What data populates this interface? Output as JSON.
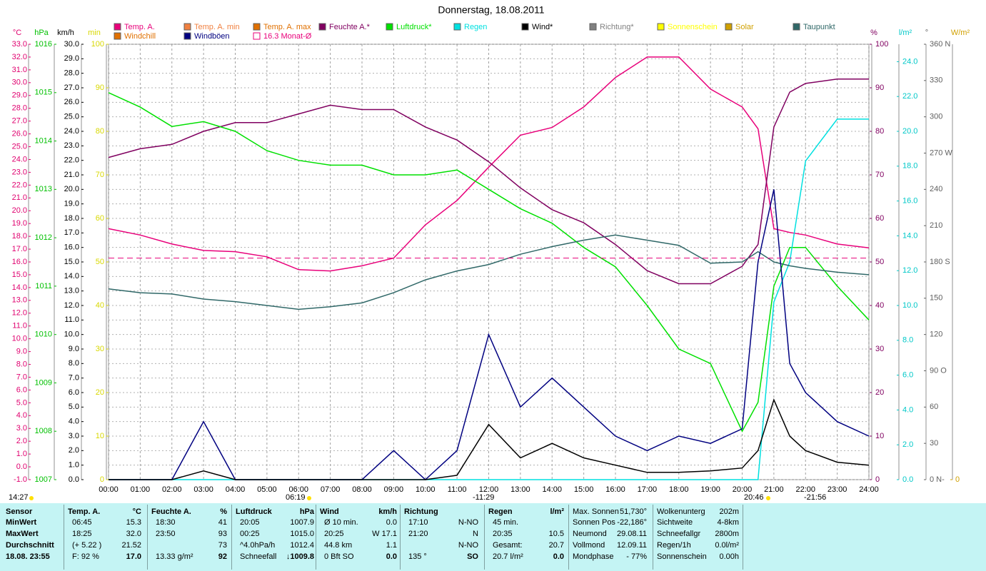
{
  "chart_data": {
    "type": "line",
    "title": "Donnerstag, 18.08.2011",
    "x": [
      0,
      1,
      2,
      3,
      4,
      5,
      6,
      7,
      8,
      9,
      10,
      11,
      12,
      13,
      14,
      15,
      16,
      17,
      18,
      19,
      20,
      20.5,
      21,
      21.5,
      22,
      23,
      24
    ],
    "xlim": [
      0,
      24
    ],
    "xticks": [
      {
        "value": 0,
        "label": "00:00"
      },
      {
        "value": 1,
        "label": "01:00"
      },
      {
        "value": 2,
        "label": "02:00"
      },
      {
        "value": 3,
        "label": "03:00"
      },
      {
        "value": 4,
        "label": "04:00"
      },
      {
        "value": 5,
        "label": "05:00"
      },
      {
        "value": 6,
        "label": "06:00"
      },
      {
        "value": 7,
        "label": "07:00"
      },
      {
        "value": 8,
        "label": "08:00"
      },
      {
        "value": 9,
        "label": "09:00"
      },
      {
        "value": 10,
        "label": "10:00"
      },
      {
        "value": 11,
        "label": "11:00"
      },
      {
        "value": 12,
        "label": "12:00"
      },
      {
        "value": 13,
        "label": "13:00"
      },
      {
        "value": 14,
        "label": "14:00"
      },
      {
        "value": 15,
        "label": "15:00"
      },
      {
        "value": 16,
        "label": "16:00"
      },
      {
        "value": 17,
        "label": "17:00"
      },
      {
        "value": 18,
        "label": "18:00"
      },
      {
        "value": 19,
        "label": "19:00"
      },
      {
        "value": 20,
        "label": "20:00"
      },
      {
        "value": 21,
        "label": "21:00"
      },
      {
        "value": 22,
        "label": "22:00"
      },
      {
        "value": 23,
        "label": "23:00"
      },
      {
        "value": 24,
        "label": "24:00"
      }
    ],
    "grid": true,
    "axes": {
      "celsius": {
        "label": "°C",
        "color": "#e0006f",
        "lim": [
          -1,
          33
        ],
        "ticks": [
          {
            "value": -1,
            "label": "-1.0"
          },
          {
            "value": 0,
            "label": "0.0"
          },
          {
            "value": 1,
            "label": "1.0"
          },
          {
            "value": 2,
            "label": "2.0"
          },
          {
            "value": 3,
            "label": "3.0"
          },
          {
            "value": 4,
            "label": "4.0"
          },
          {
            "value": 5,
            "label": "5.0"
          },
          {
            "value": 6,
            "label": "6.0"
          },
          {
            "value": 7,
            "label": "7.0"
          },
          {
            "value": 8,
            "label": "8.0"
          },
          {
            "value": 9,
            "label": "9.0"
          },
          {
            "value": 10,
            "label": "10.0"
          },
          {
            "value": 11,
            "label": "11.0"
          },
          {
            "value": 12,
            "label": "12.0"
          },
          {
            "value": 13,
            "label": "13.0"
          },
          {
            "value": 14,
            "label": "14.0"
          },
          {
            "value": 15,
            "label": "15.0"
          },
          {
            "value": 16,
            "label": "16.0"
          },
          {
            "value": 17,
            "label": "17.0"
          },
          {
            "value": 18,
            "label": "18.0"
          },
          {
            "value": 19,
            "label": "19.0"
          },
          {
            "value": 20,
            "label": "20.0"
          },
          {
            "value": 21,
            "label": "21.0"
          },
          {
            "value": 22,
            "label": "22.0"
          },
          {
            "value": 23,
            "label": "23.0"
          },
          {
            "value": 24,
            "label": "24.0"
          },
          {
            "value": 25,
            "label": "25.0"
          },
          {
            "value": 26,
            "label": "26.0"
          },
          {
            "value": 27,
            "label": "27.0"
          },
          {
            "value": 28,
            "label": "28.0"
          },
          {
            "value": 29,
            "label": "29.0"
          },
          {
            "value": 30,
            "label": "30.0"
          },
          {
            "value": 31,
            "label": "31.0"
          },
          {
            "value": 32,
            "label": "32.0"
          },
          {
            "value": 33,
            "label": "33.0"
          }
        ]
      },
      "hpa": {
        "label": "hPa",
        "color": "#00c000",
        "lim": [
          1007,
          1016
        ],
        "ticks": [
          1007,
          1008,
          1009,
          1010,
          1011,
          1012,
          1013,
          1014,
          1015,
          1016
        ]
      },
      "kmh": {
        "label": "km/h",
        "color": "#000000",
        "lim": [
          0,
          30
        ],
        "ticks": [
          {
            "value": 0,
            "label": "0.0"
          },
          {
            "value": 1,
            "label": "1.0"
          },
          {
            "value": 2,
            "label": "2.0"
          },
          {
            "value": 3,
            "label": "3.0"
          },
          {
            "value": 4,
            "label": "4.0"
          },
          {
            "value": 5,
            "label": "5.0"
          },
          {
            "value": 6,
            "label": "6.0"
          },
          {
            "value": 7,
            "label": "7.0"
          },
          {
            "value": 8,
            "label": "8.0"
          },
          {
            "value": 9,
            "label": "9.0"
          },
          {
            "value": 10,
            "label": "10.0"
          },
          {
            "value": 11,
            "label": "11.0"
          },
          {
            "value": 12,
            "label": "12.0"
          },
          {
            "value": 13,
            "label": "13.0"
          },
          {
            "value": 14,
            "label": "14.0"
          },
          {
            "value": 15,
            "label": "15.0"
          },
          {
            "value": 16,
            "label": "16.0"
          },
          {
            "value": 17,
            "label": "17.0"
          },
          {
            "value": 18,
            "label": "18.0"
          },
          {
            "value": 19,
            "label": "19.0"
          },
          {
            "value": 20,
            "label": "20.0"
          },
          {
            "value": 21,
            "label": "21.0"
          },
          {
            "value": 22,
            "label": "22.0"
          },
          {
            "value": 23,
            "label": "23.0"
          },
          {
            "value": 24,
            "label": "24.0"
          },
          {
            "value": 25,
            "label": "25.0"
          },
          {
            "value": 26,
            "label": "26.0"
          },
          {
            "value": 27,
            "label": "27.0"
          },
          {
            "value": 28,
            "label": "28.0"
          },
          {
            "value": 29,
            "label": "29.0"
          },
          {
            "value": 30,
            "label": "30.0"
          }
        ]
      },
      "min": {
        "label": "min",
        "color": "#d8d800",
        "lim": [
          0,
          100
        ],
        "ticks": [
          0,
          10,
          20,
          30,
          40,
          50,
          60,
          70,
          80,
          90,
          100
        ]
      },
      "percent": {
        "label": "%",
        "color": "#800060",
        "lim": [
          0,
          100
        ],
        "ticks": [
          0,
          10,
          20,
          30,
          40,
          50,
          60,
          70,
          80,
          90,
          100
        ]
      },
      "rain": {
        "label": "l/m²",
        "color": "#00c8c8",
        "lim": [
          0,
          25
        ],
        "ticks": [
          {
            "value": 0,
            "label": "0.0"
          },
          {
            "value": 2,
            "label": "2.0"
          },
          {
            "value": 4,
            "label": "4.0"
          },
          {
            "value": 6,
            "label": "6.0"
          },
          {
            "value": 8,
            "label": "8.0"
          },
          {
            "value": 10,
            "label": "10.0"
          },
          {
            "value": 12,
            "label": "12.0"
          },
          {
            "value": 14,
            "label": "14.0"
          },
          {
            "value": 16,
            "label": "16.0"
          },
          {
            "value": 18,
            "label": "18.0"
          },
          {
            "value": 20,
            "label": "20.0"
          },
          {
            "value": 22,
            "label": "22.0"
          },
          {
            "value": 24,
            "label": "24.0"
          }
        ]
      },
      "degrees": {
        "label": "°",
        "color": "#606060",
        "lim": [
          0,
          360
        ],
        "ticks": [
          {
            "value": 0,
            "label": "0 N-"
          },
          30,
          60,
          {
            "value": 90,
            "label": "90 O"
          },
          120,
          150,
          {
            "value": 180,
            "label": "180 S"
          },
          210,
          240,
          {
            "value": 270,
            "label": "270 W"
          },
          300,
          330,
          {
            "value": 360,
            "label": "360 N"
          }
        ]
      },
      "solar": {
        "label": "W/m²",
        "color": "#d0a000",
        "lim": [
          0,
          1000
        ],
        "ticks": [
          0
        ]
      }
    },
    "series": [
      {
        "name": "Temp. A.",
        "color": "#e8007a",
        "axis": "celsius",
        "values": [
          18.6,
          18.1,
          17.4,
          16.9,
          16.8,
          16.4,
          15.4,
          15.3,
          15.7,
          16.3,
          18.9,
          20.8,
          23.4,
          25.9,
          26.5,
          28.1,
          30.4,
          32.0,
          32.0,
          29.5,
          28.1,
          26.4,
          18.6,
          18.3,
          18.1,
          17.4,
          17.1
        ]
      },
      {
        "name": "Temp. A. min",
        "color": "#f08040"
      },
      {
        "name": "Temp. A. max",
        "color": "#e07000"
      },
      {
        "name": "Feuchte A.*",
        "color": "#800060",
        "axis": "percent",
        "values": [
          74,
          76,
          77,
          80,
          82,
          82,
          84,
          86,
          85,
          85,
          81,
          78,
          73,
          67,
          62,
          59,
          54,
          48,
          45,
          45,
          49,
          54,
          81,
          89,
          91,
          92,
          92
        ]
      },
      {
        "name": "Luftdruck*",
        "color": "#00e000",
        "axis": "hpa",
        "values": [
          1015.0,
          1014.7,
          1014.3,
          1014.4,
          1014.2,
          1013.8,
          1013.6,
          1013.5,
          1013.5,
          1013.3,
          1013.3,
          1013.4,
          1013.0,
          1012.6,
          1012.3,
          1011.8,
          1011.4,
          1010.6,
          1009.7,
          1009.4,
          1008.0,
          1008.6,
          1011.0,
          1011.8,
          1011.8,
          1011.0,
          1010.3
        ]
      },
      {
        "name": "Regen",
        "color": "#00e0e0",
        "axis": "rain",
        "values": [
          0,
          0,
          0,
          0,
          0,
          0,
          0,
          0,
          0,
          0,
          0,
          0,
          0,
          0,
          0,
          0,
          0,
          0,
          0,
          0,
          0,
          0,
          10.2,
          12.5,
          18.3,
          20.7,
          20.7
        ]
      },
      {
        "name": "Wind*",
        "color": "#000000",
        "axis": "kmh",
        "values": [
          0,
          0,
          0,
          0.6,
          0,
          0,
          0,
          0,
          0,
          0,
          0,
          0.3,
          3.8,
          1.5,
          2.5,
          1.5,
          1.0,
          0.5,
          0.5,
          0.6,
          0.8,
          2.0,
          5.5,
          3.0,
          2.0,
          1.2,
          1.0
        ]
      },
      {
        "name": "Richtung*",
        "color": "#808080"
      },
      {
        "name": "Sonnenschein",
        "color": "#ffff00"
      },
      {
        "name": "Solar",
        "color": "#d0a000"
      },
      {
        "name": "Taupunkt",
        "color": "#306868",
        "axis": "celsius",
        "values": [
          13.9,
          13.6,
          13.5,
          13.1,
          12.9,
          12.6,
          12.3,
          12.5,
          12.8,
          13.6,
          14.6,
          15.3,
          15.8,
          16.6,
          17.2,
          17.7,
          18.1,
          17.7,
          17.3,
          15.9,
          16.0,
          16.8,
          16.0,
          15.7,
          15.5,
          15.2,
          15.0
        ]
      },
      {
        "name": "Windchill",
        "color": "#e07000"
      },
      {
        "name": "Windböen",
        "color": "#000080",
        "axis": "kmh",
        "values": [
          0,
          0,
          0,
          4.0,
          0,
          0,
          0,
          0,
          0,
          2.0,
          0,
          2.0,
          10.0,
          5.0,
          7.0,
          5.0,
          3.0,
          2.0,
          3.0,
          2.5,
          3.5,
          15.0,
          20.0,
          8.0,
          6.0,
          4.0,
          3.0
        ]
      },
      {
        "name": "16.3 Monat-Ø",
        "color": "#e8007a",
        "axis": "celsius",
        "reference_value": 16.3
      }
    ],
    "annotations": [
      "14:27",
      "06:19",
      "-11:29",
      "20:46",
      "-21:56"
    ]
  },
  "table": {
    "sensor": {
      "header": "Sensor",
      "rows": [
        "MinWert",
        "MaxWert",
        "Durchschnitt",
        "18.08. 23:55"
      ]
    },
    "groups": [
      {
        "header": [
          "Temp. A.",
          "°C"
        ],
        "rows": [
          [
            "06:45",
            "15.3"
          ],
          [
            "18:25",
            "32.0"
          ],
          [
            "(+ 5.22 )",
            "21.52"
          ],
          [
            "F: 92 %",
            "17.0"
          ]
        ]
      },
      {
        "header": [
          "Feuchte A.",
          "%"
        ],
        "rows": [
          [
            "18:30",
            "41"
          ],
          [
            "23:50",
            "93"
          ],
          [
            null,
            "73"
          ],
          [
            "13.33 g/m²",
            "92"
          ]
        ]
      },
      {
        "header": [
          "Luftdruck",
          "hPa"
        ],
        "rows": [
          [
            "20:05",
            "1007.9"
          ],
          [
            "00:25",
            "1015.0"
          ],
          [
            "^4.0hPa/h",
            "1012.4"
          ],
          [
            "Schneefall",
            "↓1009.8"
          ]
        ]
      },
      {
        "header": [
          "Wind",
          "km/h"
        ],
        "rows": [
          [
            "Ø 10 min.",
            "0.0"
          ],
          [
            "20:25",
            "W 17.1"
          ],
          [
            "44.8 km",
            "1.1"
          ],
          [
            "0 Bft SO",
            "0.0"
          ]
        ]
      },
      {
        "header": [
          "Richtung",
          null
        ],
        "rows": [
          [
            "17:10",
            "N-NO"
          ],
          [
            "21:20",
            "N"
          ],
          [
            null,
            "N-NO"
          ],
          [
            "135 °",
            "SO"
          ]
        ]
      },
      {
        "header": [
          "Regen",
          "l/m²"
        ],
        "rows": [
          [
            "45 min.",
            null
          ],
          [
            "20:35",
            "10.5"
          ],
          [
            "Gesamt:",
            "20.7"
          ],
          [
            "20.7 l/m²",
            "0.0"
          ]
        ]
      }
    ],
    "info": [
      {
        "rows": [
          [
            "Max. Sonnen",
            "51,730°"
          ],
          [
            "Sonnen Pos",
            "-22,186°"
          ],
          [
            "Neumond",
            "29.08.11"
          ],
          [
            "Vollmond",
            "12.09.11"
          ],
          [
            "Mondphase",
            "- 77%"
          ]
        ]
      },
      {
        "rows": [
          [
            "Wolkenunterg",
            "202m"
          ],
          [
            "Sichtweite",
            "4-8km"
          ],
          [
            "Schneefallgr",
            "2800m"
          ],
          [
            "Regen/1h",
            "0.0l/m²"
          ],
          [
            "Sonnenschein",
            "0.00h"
          ]
        ]
      }
    ]
  }
}
